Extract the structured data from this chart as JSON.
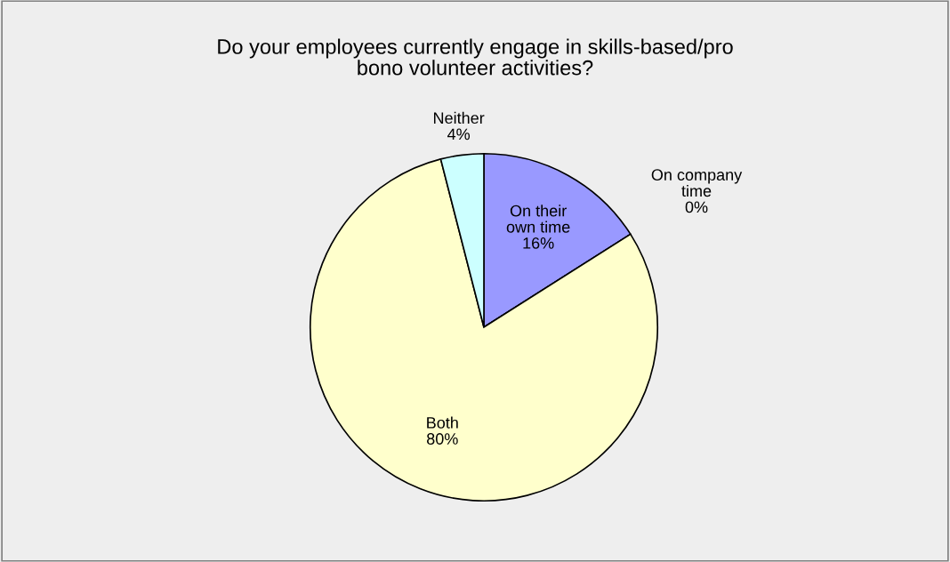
{
  "chart_data": {
    "type": "pie",
    "title": "Do your employees currently engage in skills-based/pro\nbono volunteer activities?",
    "categories": [
      "On their\nown time",
      "On company\ntime",
      "Both",
      "Neither"
    ],
    "values": [
      16,
      0,
      80,
      4
    ],
    "value_labels": [
      "16%",
      "0%",
      "80%",
      "4%"
    ],
    "colors": [
      "#9999ff",
      "#993366",
      "#ffffcc",
      "#ccffff"
    ],
    "legend": false
  }
}
